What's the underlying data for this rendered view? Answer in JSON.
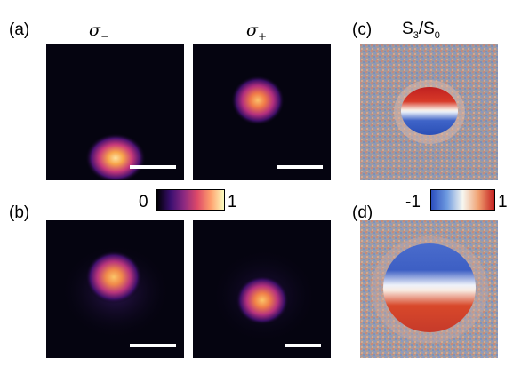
{
  "labels": {
    "a": "(a)",
    "b": "(b)",
    "c": "(c)",
    "d": "(d)"
  },
  "columns": {
    "sigma_minus_symbol": "σ",
    "sigma_minus_sub": "−",
    "sigma_plus_symbol": "σ",
    "sigma_plus_sub": "+",
    "stokes_s": "S",
    "stokes_num_sub": "3",
    "stokes_slash": "/",
    "stokes_den_s": "S",
    "stokes_den_sub": "0"
  },
  "intensity_colorbar": {
    "min_label": "0",
    "max_label": "1",
    "colormap": [
      "#000004",
      "#3b0f70",
      "#8c2981",
      "#de4968",
      "#fe9f6d",
      "#fcfdbf"
    ]
  },
  "stokes_colorbar": {
    "min_label": "-1",
    "max_label": "1",
    "colormap": [
      "#2c4fbf",
      "#6f9be0",
      "#f7f7f0",
      "#f0a070",
      "#c42020"
    ]
  }
}
